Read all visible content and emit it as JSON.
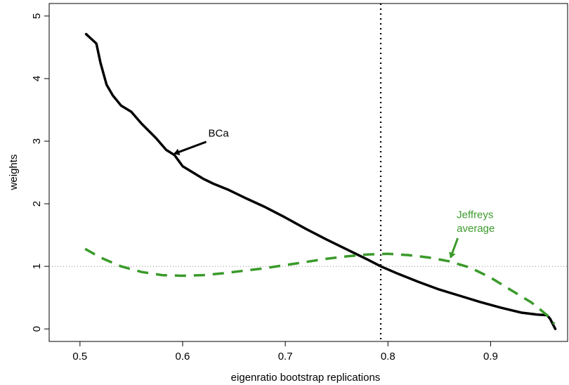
{
  "chart_data": {
    "type": "line",
    "title": "",
    "xlabel": "eigenratio bootstrap replications",
    "ylabel": "weights",
    "xlim": [
      0.47,
      0.975
    ],
    "ylim": [
      -0.2,
      5.2
    ],
    "xticks": [
      0.5,
      0.6,
      0.7,
      0.8,
      0.9
    ],
    "xtick_labels": [
      "0.5",
      "0.6",
      "0.7",
      "0.8",
      "0.9"
    ],
    "yticks": [
      0,
      1,
      2,
      3,
      4,
      5
    ],
    "ytick_labels": [
      "0",
      "1",
      "2",
      "3",
      "4",
      "5"
    ],
    "grid": false,
    "reference_lines": [
      {
        "orientation": "vertical",
        "value": 0.793,
        "style": "dotted",
        "color": "#000000"
      },
      {
        "orientation": "horizontal",
        "value": 1,
        "style": "dotted",
        "color": "#888888"
      }
    ],
    "series": [
      {
        "label": "BCa",
        "color": "#000000",
        "style": "solid",
        "x": [
          0.506,
          0.516,
          0.52,
          0.526,
          0.532,
          0.54,
          0.55,
          0.56,
          0.574,
          0.584,
          0.592,
          0.6,
          0.61,
          0.62,
          0.63,
          0.645,
          0.66,
          0.68,
          0.7,
          0.72,
          0.74,
          0.76,
          0.78,
          0.793,
          0.81,
          0.83,
          0.85,
          0.87,
          0.89,
          0.91,
          0.93,
          0.945,
          0.955,
          0.958,
          0.963
        ],
        "y": [
          4.71,
          4.56,
          4.25,
          3.9,
          3.73,
          3.57,
          3.47,
          3.28,
          3.05,
          2.86,
          2.78,
          2.6,
          2.5,
          2.4,
          2.32,
          2.22,
          2.1,
          1.95,
          1.78,
          1.6,
          1.43,
          1.27,
          1.11,
          1.0,
          0.88,
          0.75,
          0.63,
          0.53,
          0.43,
          0.34,
          0.26,
          0.23,
          0.22,
          0.16,
          0.0
        ]
      },
      {
        "label": "Jeffreys average",
        "color": "#3a9a2a",
        "style": "dashed",
        "x": [
          0.505,
          0.52,
          0.54,
          0.56,
          0.58,
          0.6,
          0.62,
          0.64,
          0.66,
          0.68,
          0.7,
          0.72,
          0.74,
          0.76,
          0.78,
          0.8,
          0.82,
          0.84,
          0.86,
          0.88,
          0.9,
          0.92,
          0.94,
          0.955,
          0.962
        ],
        "y": [
          1.28,
          1.14,
          1.0,
          0.91,
          0.86,
          0.85,
          0.86,
          0.89,
          0.93,
          0.97,
          1.02,
          1.07,
          1.12,
          1.16,
          1.19,
          1.2,
          1.18,
          1.14,
          1.08,
          0.98,
          0.82,
          0.62,
          0.42,
          0.22,
          0.08
        ]
      }
    ],
    "annotations": [
      {
        "text": "BCa",
        "color": "#000000",
        "text_x": 0.625,
        "text_y": 3.07,
        "arrow_from": [
          0.623,
          2.99
        ],
        "arrow_to": [
          0.592,
          2.8
        ]
      },
      {
        "text": "Jeffreys",
        "color": "#3a9a2a",
        "text_x": 0.867,
        "text_y": 1.77,
        "arrow_from": [
          0.868,
          1.45
        ],
        "arrow_to": [
          0.861,
          1.14
        ]
      },
      {
        "text": "average",
        "color": "#3a9a2a",
        "text_x": 0.867,
        "text_y": 1.55
      }
    ]
  }
}
